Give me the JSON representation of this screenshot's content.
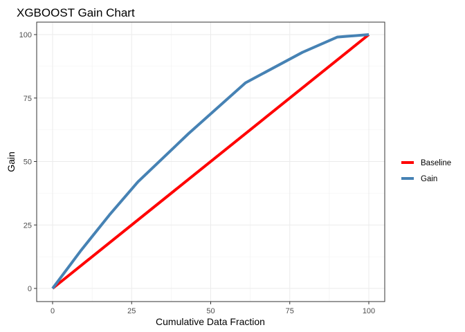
{
  "chart_data": {
    "type": "line",
    "title": "XGBOOST Gain Chart",
    "xlabel": "Cumulative Data Fraction",
    "ylabel": "Gain",
    "xlim": [
      0,
      100
    ],
    "ylim": [
      0,
      100
    ],
    "x_ticks": [
      0,
      25,
      50,
      75,
      100
    ],
    "y_ticks": [
      0,
      25,
      50,
      75,
      100
    ],
    "x_tick_labels": [
      "0",
      "25",
      "50",
      "75",
      "100"
    ],
    "y_tick_labels": [
      "0",
      "25",
      "50",
      "75",
      "100"
    ],
    "grid": true,
    "legend_position": "right",
    "series": [
      {
        "name": "Baseline",
        "color": "#ff0000",
        "points": [
          [
            0,
            0
          ],
          [
            100,
            100
          ]
        ]
      },
      {
        "name": "Gain",
        "color": "#4682b4",
        "points": [
          [
            0,
            0
          ],
          [
            9,
            15
          ],
          [
            18,
            29
          ],
          [
            27,
            42
          ],
          [
            43,
            61
          ],
          [
            61,
            81
          ],
          [
            79,
            93
          ],
          [
            90,
            99
          ],
          [
            100,
            100
          ]
        ]
      }
    ]
  }
}
